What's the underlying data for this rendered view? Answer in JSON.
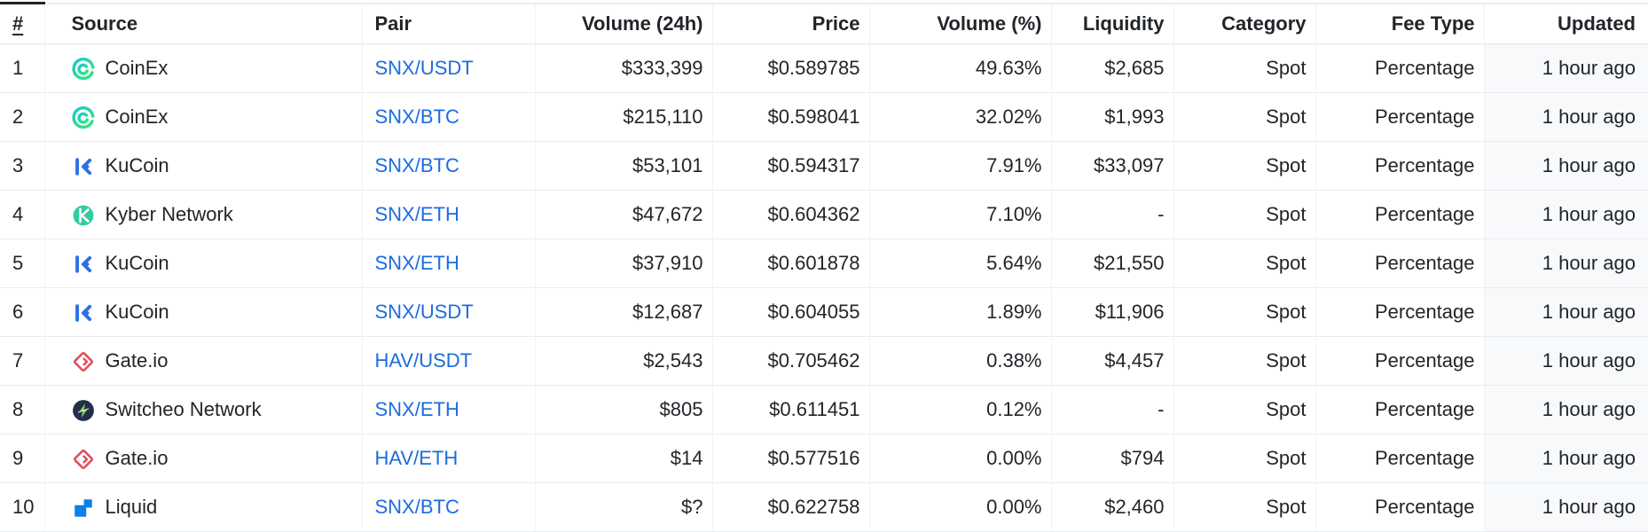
{
  "table": {
    "columns": [
      {
        "key": "rank",
        "label": "#",
        "align": "left",
        "sorted": true
      },
      {
        "key": "source",
        "label": "Source",
        "align": "left"
      },
      {
        "key": "pair",
        "label": "Pair",
        "align": "left"
      },
      {
        "key": "volume_24h",
        "label": "Volume (24h)",
        "align": "right"
      },
      {
        "key": "price",
        "label": "Price",
        "align": "right"
      },
      {
        "key": "volume_pct",
        "label": "Volume (%)",
        "align": "right"
      },
      {
        "key": "liquidity",
        "label": "Liquidity",
        "align": "right"
      },
      {
        "key": "category",
        "label": "Category",
        "align": "right"
      },
      {
        "key": "fee_type",
        "label": "Fee Type",
        "align": "right"
      },
      {
        "key": "updated",
        "label": "Updated",
        "align": "right",
        "highlighted": true
      }
    ],
    "rows": [
      {
        "rank": "1",
        "source": "CoinEx",
        "source_icon": "coinex-icon",
        "pair": "SNX/USDT",
        "volume_24h": "$333,399",
        "price": "$0.589785",
        "volume_pct": "49.63%",
        "liquidity": "$2,685",
        "category": "Spot",
        "fee_type": "Percentage",
        "updated": "1 hour ago"
      },
      {
        "rank": "2",
        "source": "CoinEx",
        "source_icon": "coinex-icon",
        "pair": "SNX/BTC",
        "volume_24h": "$215,110",
        "price": "$0.598041",
        "volume_pct": "32.02%",
        "liquidity": "$1,993",
        "category": "Spot",
        "fee_type": "Percentage",
        "updated": "1 hour ago"
      },
      {
        "rank": "3",
        "source": "KuCoin",
        "source_icon": "kucoin-icon",
        "pair": "SNX/BTC",
        "volume_24h": "$53,101",
        "price": "$0.594317",
        "volume_pct": "7.91%",
        "liquidity": "$33,097",
        "category": "Spot",
        "fee_type": "Percentage",
        "updated": "1 hour ago"
      },
      {
        "rank": "4",
        "source": "Kyber Network",
        "source_icon": "kyber-network-icon",
        "pair": "SNX/ETH",
        "volume_24h": "$47,672",
        "price": "$0.604362",
        "volume_pct": "7.10%",
        "liquidity": "-",
        "category": "Spot",
        "fee_type": "Percentage",
        "updated": "1 hour ago"
      },
      {
        "rank": "5",
        "source": "KuCoin",
        "source_icon": "kucoin-icon",
        "pair": "SNX/ETH",
        "volume_24h": "$37,910",
        "price": "$0.601878",
        "volume_pct": "5.64%",
        "liquidity": "$21,550",
        "category": "Spot",
        "fee_type": "Percentage",
        "updated": "1 hour ago"
      },
      {
        "rank": "6",
        "source": "KuCoin",
        "source_icon": "kucoin-icon",
        "pair": "SNX/USDT",
        "volume_24h": "$12,687",
        "price": "$0.604055",
        "volume_pct": "1.89%",
        "liquidity": "$11,906",
        "category": "Spot",
        "fee_type": "Percentage",
        "updated": "1 hour ago"
      },
      {
        "rank": "7",
        "source": "Gate.io",
        "source_icon": "gate-io-icon",
        "pair": "HAV/USDT",
        "volume_24h": "$2,543",
        "price": "$0.705462",
        "volume_pct": "0.38%",
        "liquidity": "$4,457",
        "category": "Spot",
        "fee_type": "Percentage",
        "updated": "1 hour ago"
      },
      {
        "rank": "8",
        "source": "Switcheo Network",
        "source_icon": "switcheo-network-icon",
        "pair": "SNX/ETH",
        "volume_24h": "$805",
        "price": "$0.611451",
        "volume_pct": "0.12%",
        "liquidity": "-",
        "category": "Spot",
        "fee_type": "Percentage",
        "updated": "1 hour ago"
      },
      {
        "rank": "9",
        "source": "Gate.io",
        "source_icon": "gate-io-icon",
        "pair": "HAV/ETH",
        "volume_24h": "$14",
        "price": "$0.577516",
        "volume_pct": "0.00%",
        "liquidity": "$794",
        "category": "Spot",
        "fee_type": "Percentage",
        "updated": "1 hour ago"
      },
      {
        "rank": "10",
        "source": "Liquid",
        "source_icon": "liquid-icon",
        "pair": "SNX/BTC",
        "volume_24h": "$?",
        "price": "$0.622758",
        "volume_pct": "0.00%",
        "liquidity": "$2,460",
        "category": "Spot",
        "fee_type": "Percentage",
        "updated": "1 hour ago"
      }
    ]
  },
  "colors": {
    "pair_link_blue": "#1b6ce0",
    "header_text": "#212529",
    "body_text": "#212529",
    "row_border": "#e8ebef",
    "column_border": "#f0f2f5",
    "sorted_column_top_border": "#212529",
    "updated_column_bg": "#f8f9fa",
    "coinex_teal": "#1ec9c4",
    "coinex_green": "#35e67c",
    "kucoin_blue": "#2a72e5",
    "kyber_green": "#31cb9e",
    "gate_red": "#df4f5e",
    "switcheo_navy": "#232e4a",
    "switcheo_bolt_green": "#7ed64a",
    "liquid_blue": "#0d7fe8"
  }
}
